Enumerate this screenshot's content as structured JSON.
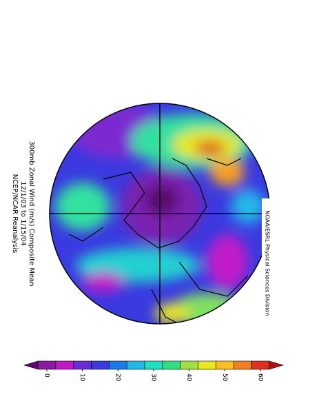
{
  "title": {
    "lines": [
      "300mb Zonal Wind (m/s) Composite Mean",
      "12/1/03  to  1/15/04",
      "NCEP/NCAR Reanalysis"
    ]
  },
  "credit": "NOAA/ESRL Physical Sciences Division",
  "colorbar": {
    "ticks": [
      0,
      10,
      20,
      30,
      40,
      50,
      60
    ],
    "colors": [
      "#5a0a6e",
      "#8b1a9e",
      "#c01ac8",
      "#6a2ad8",
      "#3a3ae0",
      "#1a7ae8",
      "#20b8e8",
      "#20e0c0",
      "#30e080",
      "#a0e040",
      "#e8e820",
      "#f8c020",
      "#f08020",
      "#e03020",
      "#b01010"
    ]
  }
}
